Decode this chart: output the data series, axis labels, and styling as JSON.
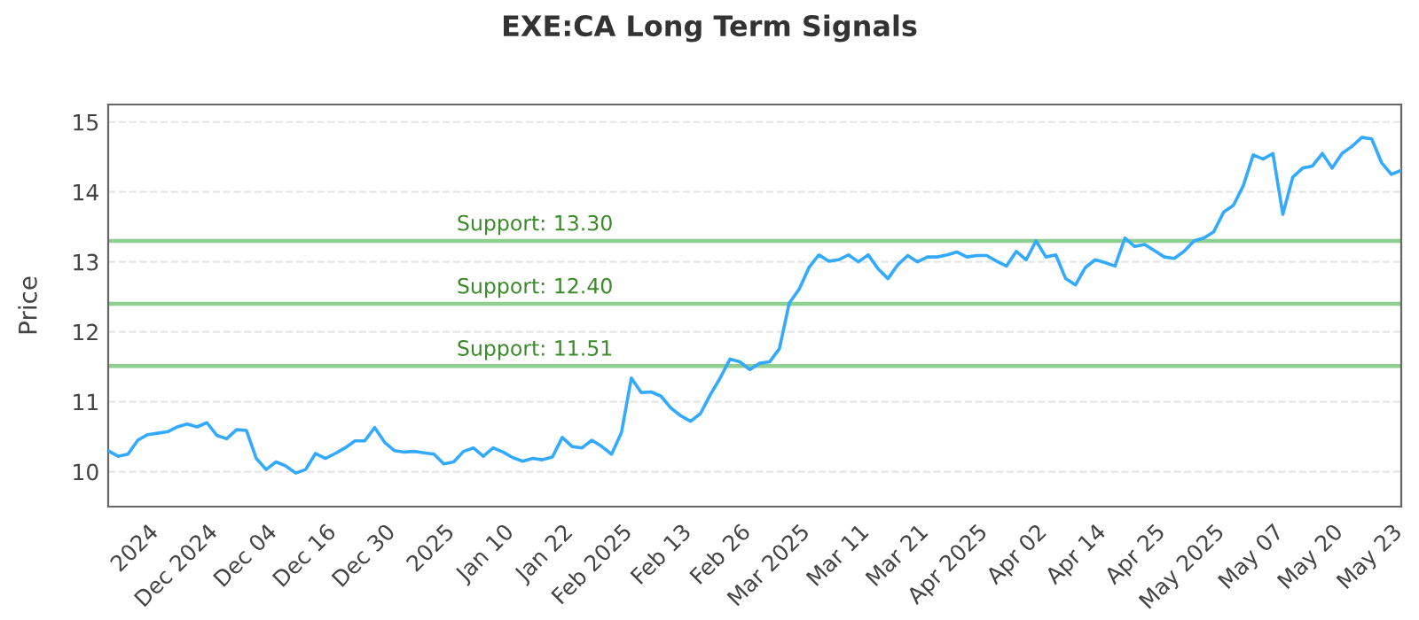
{
  "chart_data": {
    "type": "line",
    "title": "EXE:CA Long Term Signals",
    "ylabel": "Price",
    "ylim": [
      9.5,
      15.25
    ],
    "yticks": [
      10,
      11,
      12,
      13,
      14,
      15
    ],
    "categories": [
      null,
      null,
      null,
      null,
      "2024",
      null,
      null,
      null,
      null,
      null,
      "Dec 2024",
      null,
      null,
      null,
      null,
      null,
      "Dec 04",
      null,
      null,
      null,
      null,
      null,
      "Dec 16",
      null,
      null,
      null,
      null,
      null,
      "Dec 30",
      null,
      null,
      null,
      null,
      null,
      "2025",
      null,
      null,
      null,
      null,
      null,
      "Jan 10",
      null,
      null,
      null,
      null,
      null,
      "Jan 22",
      null,
      null,
      null,
      null,
      null,
      "Feb 2025",
      null,
      null,
      null,
      null,
      null,
      "Feb 13",
      null,
      null,
      null,
      null,
      null,
      "Feb 26",
      null,
      null,
      null,
      null,
      null,
      "Mar 2025",
      null,
      null,
      null,
      null,
      null,
      "Mar 11",
      null,
      null,
      null,
      null,
      null,
      "Mar 21",
      null,
      null,
      null,
      null,
      null,
      "Apr 2025",
      null,
      null,
      null,
      null,
      null,
      "Apr 02",
      null,
      null,
      null,
      null,
      null,
      "Apr 14",
      null,
      null,
      null,
      null,
      null,
      "Apr 25",
      null,
      null,
      null,
      null,
      null,
      "May 2025",
      null,
      null,
      null,
      null,
      null,
      "May 07",
      null,
      null,
      null,
      null,
      null,
      "May 20",
      null,
      null,
      null,
      null,
      null,
      "May 23",
      null
    ],
    "grid": "y",
    "legend": false,
    "marker": "none",
    "line_style": "solid",
    "series": [
      {
        "color": "#33aaff",
        "values": [
          10.3,
          10.22,
          10.25,
          10.45,
          10.53,
          10.55,
          10.57,
          10.64,
          10.68,
          10.64,
          10.7,
          10.52,
          10.47,
          10.6,
          10.59,
          10.19,
          10.03,
          10.14,
          10.08,
          9.98,
          10.03,
          10.26,
          10.19,
          10.26,
          10.34,
          10.44,
          10.44,
          10.63,
          10.42,
          10.3,
          10.28,
          10.29,
          10.27,
          10.25,
          10.11,
          10.14,
          10.29,
          10.34,
          10.22,
          10.34,
          10.28,
          10.2,
          10.15,
          10.19,
          10.17,
          10.21,
          10.49,
          10.36,
          10.34,
          10.45,
          10.36,
          10.25,
          10.56,
          11.34,
          11.13,
          11.14,
          11.08,
          10.91,
          10.8,
          10.72,
          10.83,
          11.1,
          11.34,
          11.61,
          11.57,
          11.46,
          11.55,
          11.57,
          11.76,
          12.41,
          12.61,
          12.92,
          13.1,
          13.01,
          13.03,
          13.1,
          13.0,
          13.1,
          12.9,
          12.76,
          12.96,
          13.09,
          13.0,
          13.07,
          13.07,
          13.1,
          13.14,
          13.07,
          13.09,
          13.09,
          13.01,
          12.94,
          13.15,
          13.03,
          13.3,
          13.07,
          13.1,
          12.76,
          12.67,
          12.92,
          13.03,
          12.99,
          12.94,
          13.34,
          13.22,
          13.25,
          13.16,
          13.07,
          13.05,
          13.15,
          13.3,
          13.34,
          13.43,
          13.71,
          13.81,
          14.09,
          14.53,
          14.47,
          14.55,
          13.68,
          14.21,
          14.34,
          14.37,
          14.55,
          14.34,
          14.55,
          14.65,
          14.78,
          14.76,
          14.42,
          14.25,
          14.31
        ]
      }
    ],
    "ref_lines": [
      {
        "axis": "y",
        "value": 13.3,
        "label": "Support: 13.30",
        "color": "#8fcf8f"
      },
      {
        "axis": "y",
        "value": 12.4,
        "label": "Support: 12.40",
        "color": "#8fcf8f"
      },
      {
        "axis": "y",
        "value": 11.51,
        "label": "Support: 11.51",
        "color": "#8fcf8f"
      }
    ]
  }
}
